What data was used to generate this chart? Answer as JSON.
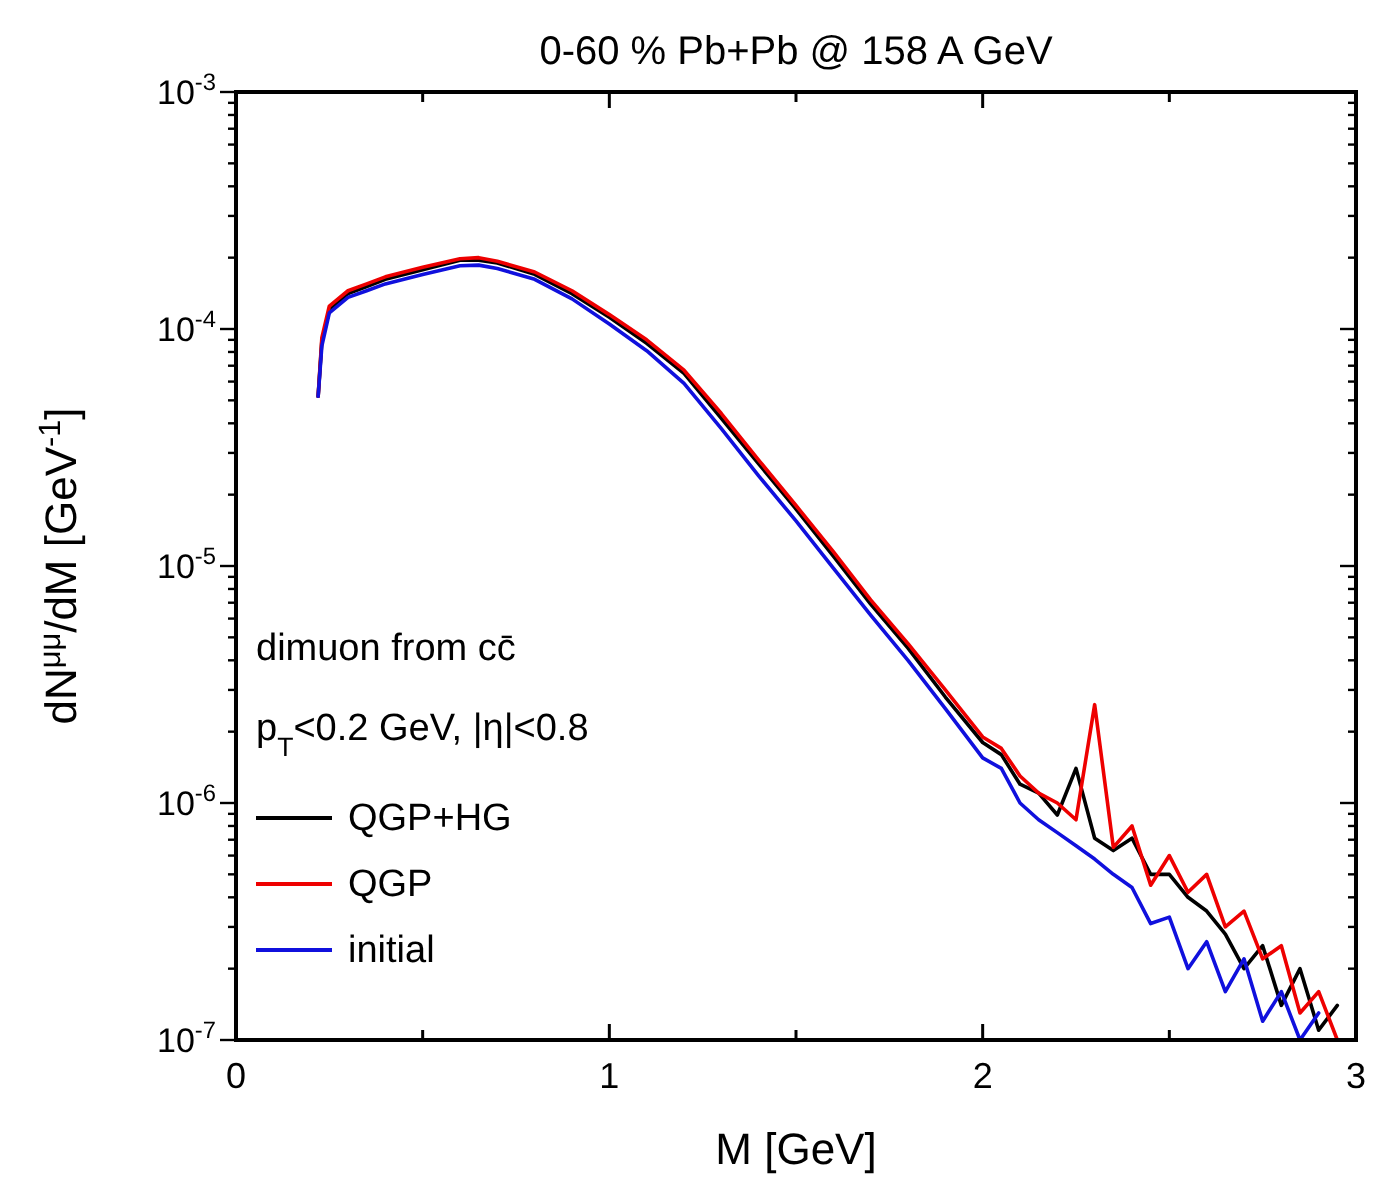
{
  "chart_data": {
    "type": "line",
    "title": "0-60 % Pb+Pb @ 158 A GeV",
    "xlabel": "M [GeV]",
    "ylabel": "dN$^{μμ}$/dM [GeV$^{-1}$]",
    "annotations": [
      "dimuon from cc̄",
      "p$_{T}$<0.2 GeV, |η|<0.8"
    ],
    "log": "y",
    "legend": "bottom left",
    "line_style": "solid",
    "marker": "none",
    "xlim": [
      0,
      3
    ],
    "xticks": [
      0,
      {
        "value": 0.5,
        "label": null
      },
      1,
      {
        "value": 1.5,
        "label": null
      },
      2,
      {
        "value": 2.5,
        "label": null
      },
      3
    ],
    "ylim": [
      1e-07,
      0.001
    ],
    "yticks": [
      {
        "value": 1e-07,
        "label": "10$^{-7}$"
      },
      {
        "value": 2e-07,
        "label": null
      },
      {
        "value": 3e-07,
        "label": null
      },
      {
        "value": 4e-07,
        "label": null
      },
      {
        "value": 5e-07,
        "label": null
      },
      {
        "value": 6e-07,
        "label": null
      },
      {
        "value": 7e-07,
        "label": null
      },
      {
        "value": 8e-07,
        "label": null
      },
      {
        "value": 9e-07,
        "label": null
      },
      {
        "value": 1e-06,
        "label": "10$^{-6}$"
      },
      {
        "value": 2e-06,
        "label": null
      },
      {
        "value": 3e-06,
        "label": null
      },
      {
        "value": 4e-06,
        "label": null
      },
      {
        "value": 5e-06,
        "label": null
      },
      {
        "value": 6e-06,
        "label": null
      },
      {
        "value": 7e-06,
        "label": null
      },
      {
        "value": 8e-06,
        "label": null
      },
      {
        "value": 9e-06,
        "label": null
      },
      {
        "value": 1e-05,
        "label": "10$^{-5}$"
      },
      {
        "value": 2e-05,
        "label": null
      },
      {
        "value": 3e-05,
        "label": null
      },
      {
        "value": 4e-05,
        "label": null
      },
      {
        "value": 5e-05,
        "label": null
      },
      {
        "value": 6e-05,
        "label": null
      },
      {
        "value": 7e-05,
        "label": null
      },
      {
        "value": 8e-05,
        "label": null
      },
      {
        "value": 9e-05,
        "label": null
      },
      {
        "value": 0.0001,
        "label": "10$^{-4}$"
      },
      {
        "value": 0.0002,
        "label": null
      },
      {
        "value": 0.0003,
        "label": null
      },
      {
        "value": 0.0004,
        "label": null
      },
      {
        "value": 0.0005,
        "label": null
      },
      {
        "value": 0.0006,
        "label": null
      },
      {
        "value": 0.0007,
        "label": null
      },
      {
        "value": 0.0008,
        "label": null
      },
      {
        "value": 0.0009,
        "label": null
      },
      {
        "value": 0.001,
        "label": "10$^{-3}$"
      }
    ],
    "x": [
      0.22,
      0.23,
      0.25,
      0.3,
      0.35,
      0.4,
      0.5,
      0.6,
      0.65,
      0.7,
      0.8,
      0.9,
      1.0,
      1.1,
      1.2,
      1.3,
      1.4,
      1.5,
      1.6,
      1.7,
      1.8,
      1.9,
      2.0,
      2.05,
      2.1,
      2.15,
      2.2,
      2.25,
      2.3,
      2.35,
      2.4,
      2.45,
      2.5,
      2.55,
      2.6,
      2.65,
      2.7,
      2.75,
      2.8,
      2.85,
      2.9,
      2.95
    ],
    "series": [
      {
        "name": "QGP+HG",
        "color": "#000000",
        "values": [
          5.2e-05,
          8.9e-05,
          0.00012,
          0.000141,
          0.000151,
          0.000162,
          0.000178,
          0.000195,
          0.000195,
          0.00019,
          0.00017,
          0.000141,
          0.000112,
          8.7e-05,
          6.5e-05,
          4.2e-05,
          2.7e-05,
          1.74e-05,
          1.1e-05,
          6.9e-06,
          4.5e-06,
          2.8e-06,
          1.8e-06,
          1.6e-06,
          1.2e-06,
          1.1e-06,
          8.9e-07,
          1.4e-06,
          7.1e-07,
          6.3e-07,
          7.1e-07,
          5e-07,
          5e-07,
          4e-07,
          3.5e-07,
          2.8e-07,
          2e-07,
          2.5e-07,
          1.4e-07,
          2e-07,
          1.1e-07,
          1.4e-07
        ]
      },
      {
        "name": "QGP",
        "color": "#ee0000",
        "values": [
          5.2e-05,
          9.2e-05,
          0.000125,
          0.000145,
          0.000155,
          0.000166,
          0.000182,
          0.000198,
          0.0002,
          0.000193,
          0.000174,
          0.000145,
          0.000115,
          9e-05,
          6.7e-05,
          4.4e-05,
          2.8e-05,
          1.8e-05,
          1.15e-05,
          7.2e-06,
          4.7e-06,
          3e-06,
          1.9e-06,
          1.7e-06,
          1.3e-06,
          1.1e-06,
          1e-06,
          8.5e-07,
          2.6e-06,
          6.5e-07,
          8e-07,
          4.5e-07,
          6e-07,
          4.2e-07,
          5e-07,
          3e-07,
          3.5e-07,
          2.2e-07,
          2.5e-07,
          1.3e-07,
          1.6e-07,
          1e-07
        ]
      },
      {
        "name": "initial",
        "color": "#1010dd",
        "values": [
          5.2e-05,
          8.5e-05,
          0.000117,
          0.000136,
          0.000145,
          0.000155,
          0.00017,
          0.000185,
          0.000186,
          0.00018,
          0.000162,
          0.000134,
          0.000105,
          8.1e-05,
          5.9e-05,
          3.8e-05,
          2.4e-05,
          1.55e-05,
          9.8e-06,
          6.2e-06,
          4e-06,
          2.5e-06,
          1.55e-06,
          1.4e-06,
          1e-06,
          8.5e-07,
          7.5e-07,
          6.6e-07,
          5.8e-07,
          5e-07,
          4.4e-07,
          3.1e-07,
          3.3e-07,
          2e-07,
          2.6e-07,
          1.6e-07,
          2.2e-07,
          1.2e-07,
          1.6e-07,
          1e-07,
          1.3e-07,
          null
        ]
      }
    ]
  }
}
